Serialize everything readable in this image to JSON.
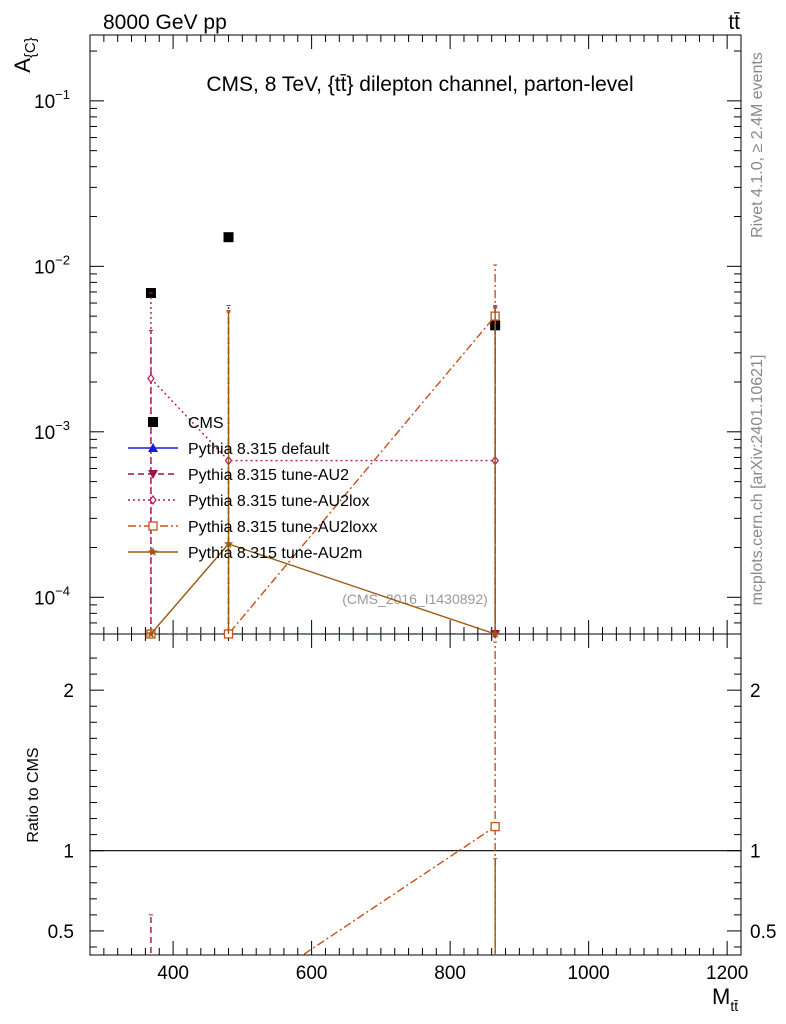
{
  "header": {
    "left": "8000 GeV pp",
    "right": "tt̄"
  },
  "side_labels": {
    "top": "Rivet 4.1.0, ≥ 2.4M events",
    "bottom": "mcplots.cern.ch [arXiv:2401.10621]"
  },
  "chart_data": {
    "type": "scatter",
    "title": "CMS, 8 TeV, {tt̄} dilepton channel, parton-level",
    "watermark": "(CMS_2016_I1430892)",
    "ylabel": "A_{C}",
    "xlabel": "M_{tt̄}",
    "ratio_ylabel": "Ratio to CMS",
    "xlim": [
      280,
      1220
    ],
    "ylim": [
      6e-05,
      0.25
    ],
    "yscale": "log",
    "ratio_ylim": [
      0.35,
      2.35
    ],
    "x_ticks": [
      400,
      600,
      800,
      1000,
      1200
    ],
    "y_ticks": [
      {
        "value": 0.1,
        "base": "10",
        "exp": "−1"
      },
      {
        "value": 0.01,
        "base": "10",
        "exp": "−2"
      },
      {
        "value": 0.001,
        "base": "10",
        "exp": "−3"
      },
      {
        "value": 0.0001,
        "base": "10",
        "exp": "−4"
      }
    ],
    "ratio_ticks": [
      0.5,
      1,
      2
    ],
    "legend_position": "lower-left",
    "series": [
      {
        "name": "CMS",
        "color": "#000000",
        "marker": "square-filled",
        "dash": "none",
        "x": [
          368,
          480,
          865
        ],
        "y": [
          0.0069,
          0.015,
          0.0044
        ],
        "yerr": [
          0.0002,
          0.0003,
          0.0003
        ]
      },
      {
        "name": "Pythia 8.315 default",
        "color": "#1a1adf",
        "marker": "triangle-up",
        "dash": "solid",
        "x": [],
        "y": []
      },
      {
        "name": "Pythia 8.315 tune-AU2",
        "color": "#a0104f",
        "marker": "triangle-down",
        "dash": "dashed",
        "x": [
          368,
          480,
          865
        ],
        "y": [
          6e-05,
          6e-05,
          6e-05
        ],
        "ylo": [
          6e-05,
          6e-05,
          6e-05
        ],
        "yhi": [
          0.0041,
          0.0053,
          0.0057
        ]
      },
      {
        "name": "Pythia 8.315 tune-AU2lox",
        "color": "#b01a57",
        "marker": "diamond-open",
        "dash": "dotted",
        "x": [
          368,
          480,
          865
        ],
        "y": [
          0.0021,
          0.00067,
          0.00067
        ],
        "ylo": [
          6e-05,
          6e-05,
          6e-05
        ],
        "yhi": [
          0.0069,
          0.0058,
          0.0056
        ]
      },
      {
        "name": "Pythia 8.315 tune-AU2loxx",
        "color": "#c8501a",
        "marker": "square-open",
        "dash": "dashdot",
        "x": [
          368,
          480,
          865
        ],
        "y": [
          6e-05,
          6e-05,
          0.005
        ],
        "ylo": [
          6e-05,
          6e-05,
          6e-05
        ],
        "yhi": [
          6e-05,
          6e-05,
          0.0102
        ]
      },
      {
        "name": "Pythia 8.315 tune-AU2m",
        "color": "#9a5a10",
        "marker": "star",
        "dash": "solid",
        "x": [
          368,
          480,
          865
        ],
        "y": [
          6e-05,
          0.00021,
          6e-05
        ],
        "ylo": [
          6e-05,
          6e-05,
          6e-05
        ],
        "yhi": [
          6e-05,
          0.0054,
          0.0058
        ]
      }
    ],
    "ratio_series": [
      {
        "name": "Pythia 8.315 tune-AU2",
        "color": "#a0104f",
        "dash": "dashed",
        "errbars": [
          {
            "x": 368,
            "lo": 0.3,
            "hi": 0.6
          }
        ]
      },
      {
        "name": "Pythia 8.315 tune-AU2loxx",
        "color": "#c8501a",
        "dash": "dashdot",
        "x": [
          570,
          865
        ],
        "y": [
          0.3,
          1.15
        ],
        "marker_at": [
          865
        ],
        "errbars": [
          {
            "x": 865,
            "lo": 0.3,
            "hi": 2.3
          }
        ]
      },
      {
        "name": "Pythia 8.315 tune-AU2m",
        "color": "#9a5a10",
        "dash": "solid",
        "errbars": [
          {
            "x": 865,
            "lo": 0.3,
            "hi": 0.95
          }
        ]
      }
    ]
  }
}
